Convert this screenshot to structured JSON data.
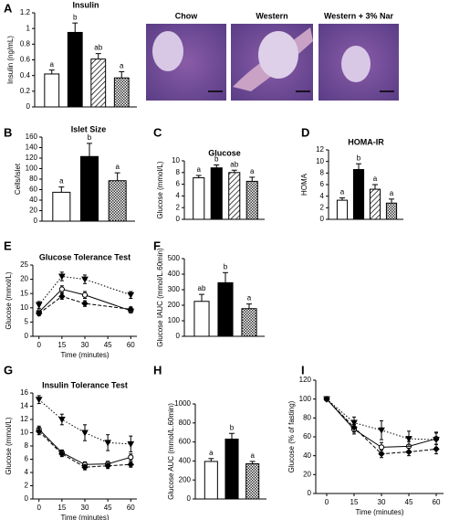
{
  "chart_data": [
    {
      "type": "bar",
      "label": "A",
      "title": "Insulin",
      "ylabel": "Insulin  (ng/mL)",
      "ylim": [
        0,
        1.2
      ],
      "yticks": [
        0,
        0.2,
        0.4,
        0.6,
        0.8,
        1,
        1.2
      ],
      "values": [
        0.42,
        0.95,
        0.61,
        0.37
      ],
      "errors": [
        0.05,
        0.12,
        0.07,
        0.08
      ],
      "letters": [
        "a",
        "b",
        "ab",
        "a"
      ],
      "fills": [
        "white",
        "black",
        "diagonal",
        "checker"
      ]
    },
    {
      "type": "bar",
      "label": "B",
      "title": "Islet Size",
      "ylabel": "Cells/islet",
      "ylim": [
        0,
        160
      ],
      "yticks": [
        0,
        20,
        40,
        60,
        80,
        100,
        120,
        140,
        160
      ],
      "values": [
        55,
        123,
        77
      ],
      "errors": [
        10,
        25,
        15
      ],
      "letters": [
        "a",
        "b",
        "a"
      ],
      "fills": [
        "white",
        "black",
        "checker"
      ]
    },
    {
      "type": "bar",
      "label": "C",
      "title": "Glucose",
      "ylabel": "Glucose (mmol/L)",
      "ylim": [
        0,
        10
      ],
      "yticks": [
        0,
        2,
        4,
        6,
        8,
        10
      ],
      "values": [
        7.1,
        8.8,
        8.0,
        6.5
      ],
      "errors": [
        0.4,
        0.5,
        0.4,
        0.7
      ],
      "letters": [
        "a",
        "b",
        "ab",
        "a"
      ],
      "fills": [
        "white",
        "black",
        "diagonal",
        "checker"
      ]
    },
    {
      "type": "bar",
      "label": "D",
      "title": "HOMA-IR",
      "ylabel": "HOMA",
      "ylim": [
        0,
        12
      ],
      "yticks": [
        0,
        2,
        4,
        6,
        8,
        10,
        12
      ],
      "values": [
        3.3,
        8.6,
        5.2,
        2.8
      ],
      "errors": [
        0.4,
        1.0,
        0.8,
        0.7
      ],
      "letters": [
        "a",
        "b",
        "a",
        "a"
      ],
      "fills": [
        "white",
        "black",
        "diagonal",
        "checker"
      ]
    },
    {
      "type": "line",
      "label": "E",
      "title": "Glucose Tolerance Test",
      "ylabel": "Glucose (mmol/L)",
      "xlabel": "Time (minutes)",
      "ylim": [
        0,
        25
      ],
      "yticks": [
        0,
        5,
        10,
        15,
        20,
        25
      ],
      "xlim": [
        -4,
        64
      ],
      "xticks": [
        0,
        15,
        30,
        45,
        60
      ],
      "x": [
        0,
        15,
        30,
        60
      ],
      "series": [
        {
          "marker": "open-circle",
          "dash": "solid",
          "values": [
            8.5,
            16.5,
            14.5,
            9.0
          ],
          "errors": [
            0.8,
            1.2,
            1.2,
            0.8
          ]
        },
        {
          "marker": "triangle",
          "dash": "dotted",
          "values": [
            11.0,
            21.0,
            20.0,
            14.5
          ],
          "errors": [
            1.2,
            1.5,
            1.5,
            1.2
          ]
        },
        {
          "marker": "diamond",
          "dash": "dashed",
          "values": [
            8.0,
            14.0,
            11.5,
            9.5
          ],
          "errors": [
            0.8,
            1.0,
            1.0,
            0.8
          ]
        }
      ]
    },
    {
      "type": "bar",
      "label": "F",
      "ylabel": "Glucose IAUC (mmol/L.60min)",
      "ylim": [
        0,
        500
      ],
      "yticks": [
        0,
        100,
        200,
        300,
        400,
        500
      ],
      "values": [
        225,
        345,
        178
      ],
      "errors": [
        45,
        65,
        30
      ],
      "letters": [
        "ab",
        "b",
        "a"
      ],
      "fills": [
        "white",
        "black",
        "checker"
      ]
    },
    {
      "type": "line",
      "label": "G",
      "title": "Insulin Tolerance Test",
      "ylabel": "Glucose (mmol/L)",
      "xlabel": "Time (minutes)",
      "ylim": [
        0,
        16
      ],
      "yticks": [
        0,
        2,
        4,
        6,
        8,
        10,
        12,
        14,
        16
      ],
      "xlim": [
        -4,
        64
      ],
      "xticks": [
        0,
        15,
        30,
        45,
        60
      ],
      "x": [
        0,
        15,
        30,
        45,
        60
      ],
      "series": [
        {
          "marker": "open-circle",
          "dash": "solid",
          "values": [
            10.5,
            7.0,
            5.2,
            5.3,
            6.3
          ],
          "errors": [
            0.5,
            0.4,
            0.4,
            0.4,
            0.5
          ]
        },
        {
          "marker": "triangle",
          "dash": "dotted",
          "values": [
            15.0,
            12.0,
            10.0,
            8.5,
            8.3
          ],
          "errors": [
            0.6,
            0.8,
            1.2,
            1.2,
            1.2
          ]
        },
        {
          "marker": "diamond",
          "dash": "dashed",
          "values": [
            10.2,
            6.8,
            4.8,
            5.0,
            5.2
          ],
          "errors": [
            0.5,
            0.4,
            0.4,
            0.4,
            0.4
          ]
        }
      ]
    },
    {
      "type": "bar",
      "label": "H",
      "ylabel": "Glucose AUC (mmol/L.60min)",
      "ylim": [
        0,
        1000
      ],
      "yticks": [
        0,
        200,
        400,
        600,
        800,
        1000
      ],
      "values": [
        395,
        630,
        370
      ],
      "errors": [
        30,
        60,
        25
      ],
      "letters": [
        "a",
        "b",
        "a"
      ],
      "fills": [
        "white",
        "black",
        "checker"
      ]
    },
    {
      "type": "line",
      "label": "I",
      "ylabel": "Glucose (% of fasting)",
      "xlabel": "Time (minutes)",
      "ylim": [
        0,
        120
      ],
      "yticks": [
        0,
        20,
        40,
        60,
        80,
        100,
        120
      ],
      "xlim": [
        -6,
        64
      ],
      "xticks": [
        0,
        15,
        30,
        45,
        60
      ],
      "x": [
        0,
        15,
        30,
        45,
        60
      ],
      "series": [
        {
          "marker": "open-circle",
          "dash": "solid",
          "values": [
            100,
            68,
            49,
            50,
            58
          ],
          "errors": [
            0,
            5,
            5,
            5,
            6
          ]
        },
        {
          "marker": "triangle",
          "dash": "dotted",
          "values": [
            100,
            75,
            67,
            58,
            57
          ],
          "errors": [
            0,
            6,
            10,
            8,
            8
          ]
        },
        {
          "marker": "diamond",
          "dash": "dashed",
          "values": [
            100,
            70,
            42,
            44,
            47
          ],
          "errors": [
            0,
            5,
            4,
            4,
            5
          ]
        }
      ]
    }
  ],
  "images": [
    "Chow",
    "Western",
    "Western + 3% Nar"
  ]
}
